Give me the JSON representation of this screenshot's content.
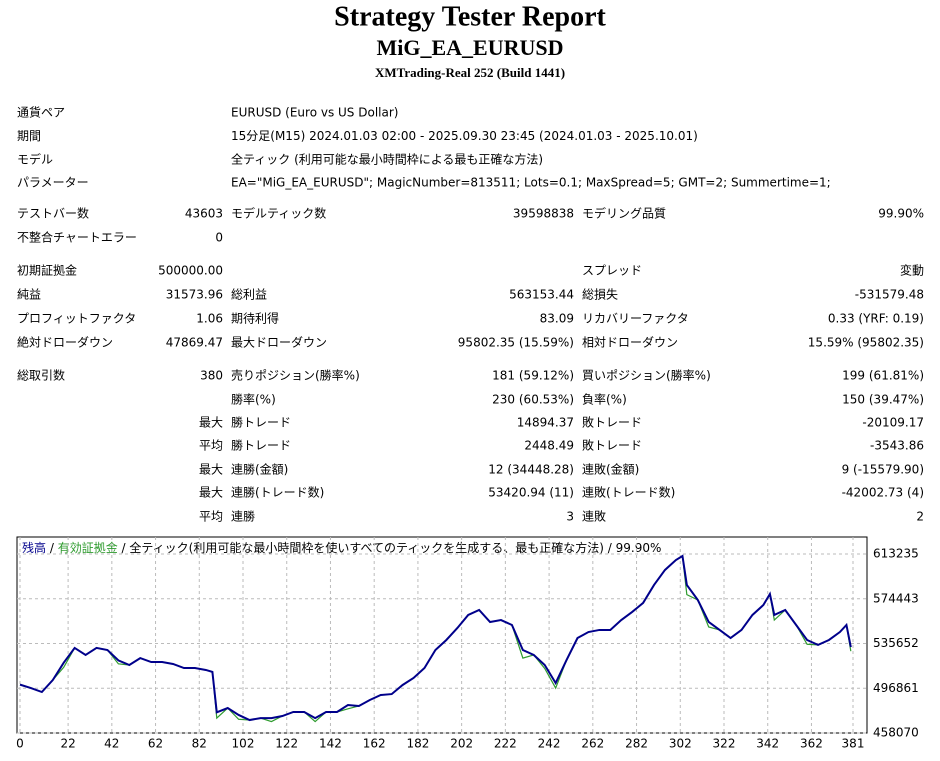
{
  "header": {
    "title": "Strategy Tester Report",
    "subtitle": "MiG_EA_EURUSD",
    "build": "XMTrading-Real 252 (Build 1441)"
  },
  "info": {
    "rows": [
      [
        "通貨ペア",
        "EURUSD (Euro vs US Dollar)"
      ],
      [
        "期間",
        "15分足(M15) 2024.01.03 02:00 - 2025.09.30 23:45 (2024.01.03 - 2025.10.01)"
      ],
      [
        "モデル",
        "全ティック (利用可能な最小時間枠による最も正確な方法)"
      ],
      [
        "パラメーター",
        "EA=\"MiG_EA_EURUSD\"; MagicNumber=813511; Lots=0.1; MaxSpread=5; GMT=2; Summertime=1;"
      ]
    ]
  },
  "stats": {
    "rows": [
      [
        "テストバー数",
        "43603",
        "モデルティック数",
        "39598838",
        "モデリング品質",
        "99.90%"
      ],
      [
        "不整合チャートエラー",
        "0",
        null,
        null,
        null,
        null
      ],
      [
        "初期証拠金",
        "500000.00",
        null,
        null,
        "スプレッド",
        "変動"
      ],
      [
        "純益",
        "31573.96",
        "総利益",
        "563153.44",
        "総損失",
        "-531579.48"
      ],
      [
        "プロフィットファクタ",
        "1.06",
        "期待利得",
        "83.09",
        "リカバリーファクタ",
        "0.33 (YRF: 0.19)"
      ],
      [
        "絶対ドローダウン",
        "47869.47",
        "最大ドローダウン",
        "95802.35 (15.59%)",
        "相対ドローダウン",
        "15.59% (95802.35)"
      ],
      [
        "総取引数",
        "380",
        "売りポジション(勝率%)",
        "181 (59.12%)",
        "買いポジション(勝率%)",
        "199 (61.81%)"
      ],
      [
        null,
        null,
        "勝率(%)",
        "230 (60.53%)",
        "負率(%)",
        "150 (39.47%)"
      ],
      [
        null,
        "最大",
        "勝トレード",
        "14894.37",
        "敗トレード",
        "-20109.17"
      ],
      [
        null,
        "平均",
        "勝トレード",
        "2448.49",
        "敗トレード",
        "-3543.86"
      ],
      [
        null,
        "最大",
        "連勝(金額)",
        "12 (34448.28)",
        "連敗(金額)",
        "9 (-15579.90)"
      ],
      [
        null,
        "最大",
        "連勝(トレード数)",
        "53420.94 (11)",
        "連敗(トレード数)",
        "-42002.73 (4)"
      ],
      [
        null,
        "平均",
        "連勝",
        "3",
        "連敗",
        "2"
      ]
    ]
  },
  "chart_data": {
    "type": "line",
    "legend": [
      {
        "text": "残高",
        "color": "#00008b"
      },
      {
        "text": " / ",
        "color": "#000000"
      },
      {
        "text": "有効証拠金",
        "color": "#2e9b2e"
      },
      {
        "text": " / 全ティック(利用可能な最小時間枠を使いすべてのティックを生成する、最も正確な方法) / 99.90%",
        "color": "#000000"
      }
    ],
    "x": [
      0,
      5,
      10,
      15,
      20,
      25,
      30,
      35,
      40,
      45,
      50,
      55,
      60,
      65,
      70,
      75,
      80,
      85,
      88,
      90,
      95,
      100,
      105,
      110,
      115,
      120,
      125,
      130,
      135,
      140,
      145,
      150,
      155,
      160,
      165,
      170,
      175,
      180,
      185,
      190,
      195,
      200,
      205,
      210,
      215,
      220,
      225,
      230,
      235,
      240,
      245,
      250,
      255,
      260,
      265,
      270,
      275,
      280,
      285,
      290,
      295,
      300,
      303,
      305,
      310,
      315,
      320,
      325,
      330,
      335,
      340,
      343,
      345,
      350,
      355,
      360,
      365,
      370,
      375,
      378,
      380
    ],
    "series": [
      {
        "name": "残高",
        "color": "#00008b",
        "values": [
          500000,
          497000,
          493600,
          504000,
          519000,
          531800,
          525700,
          531800,
          530000,
          521000,
          517000,
          523000,
          519600,
          519600,
          517900,
          514400,
          514400,
          512700,
          511000,
          476000,
          479700,
          473700,
          469300,
          471000,
          471000,
          472800,
          476300,
          476300,
          471000,
          476300,
          476300,
          482300,
          481500,
          486700,
          491000,
          491800,
          499700,
          505800,
          514400,
          530000,
          538700,
          549000,
          560400,
          564700,
          554300,
          556000,
          551700,
          530000,
          525700,
          517000,
          501400,
          521400,
          540400,
          545600,
          547400,
          547400,
          556000,
          563000,
          570800,
          586400,
          599400,
          608000,
          611500,
          586400,
          573400,
          554300,
          547400,
          540400,
          547400,
          560400,
          569000,
          578600,
          560400,
          564700,
          551700,
          538700,
          534400,
          538700,
          545600,
          551700,
          532600
        ]
      },
      {
        "name": "有効証拠金",
        "color": "#2e9b2e",
        "values": [
          500000,
          497000,
          493600,
          504000,
          515000,
          531800,
          525700,
          531800,
          530000,
          518000,
          517000,
          523000,
          519600,
          519600,
          517900,
          514400,
          514400,
          512700,
          511000,
          471000,
          479700,
          470000,
          469300,
          471000,
          468000,
          472800,
          476300,
          476300,
          468000,
          476300,
          476300,
          479000,
          481500,
          486700,
          491000,
          491800,
          499700,
          505800,
          514400,
          530000,
          538700,
          549000,
          560400,
          564700,
          554300,
          556000,
          551700,
          523000,
          525700,
          514000,
          497000,
          521400,
          540400,
          545600,
          547400,
          547400,
          556000,
          563000,
          570800,
          586400,
          599400,
          608000,
          611500,
          578000,
          573400,
          550000,
          547400,
          540400,
          547400,
          560400,
          569000,
          578600,
          556000,
          564700,
          551700,
          535000,
          534400,
          538700,
          545600,
          551700,
          529000
        ]
      }
    ],
    "xlim": [
      0,
      381
    ],
    "ylim": [
      458070,
      613235
    ],
    "xticks": [
      0,
      22,
      42,
      62,
      82,
      102,
      122,
      142,
      162,
      182,
      202,
      222,
      242,
      262,
      282,
      302,
      322,
      342,
      362,
      381
    ],
    "yticks": [
      458070,
      496861,
      535652,
      574443,
      613235
    ],
    "grid": true
  }
}
